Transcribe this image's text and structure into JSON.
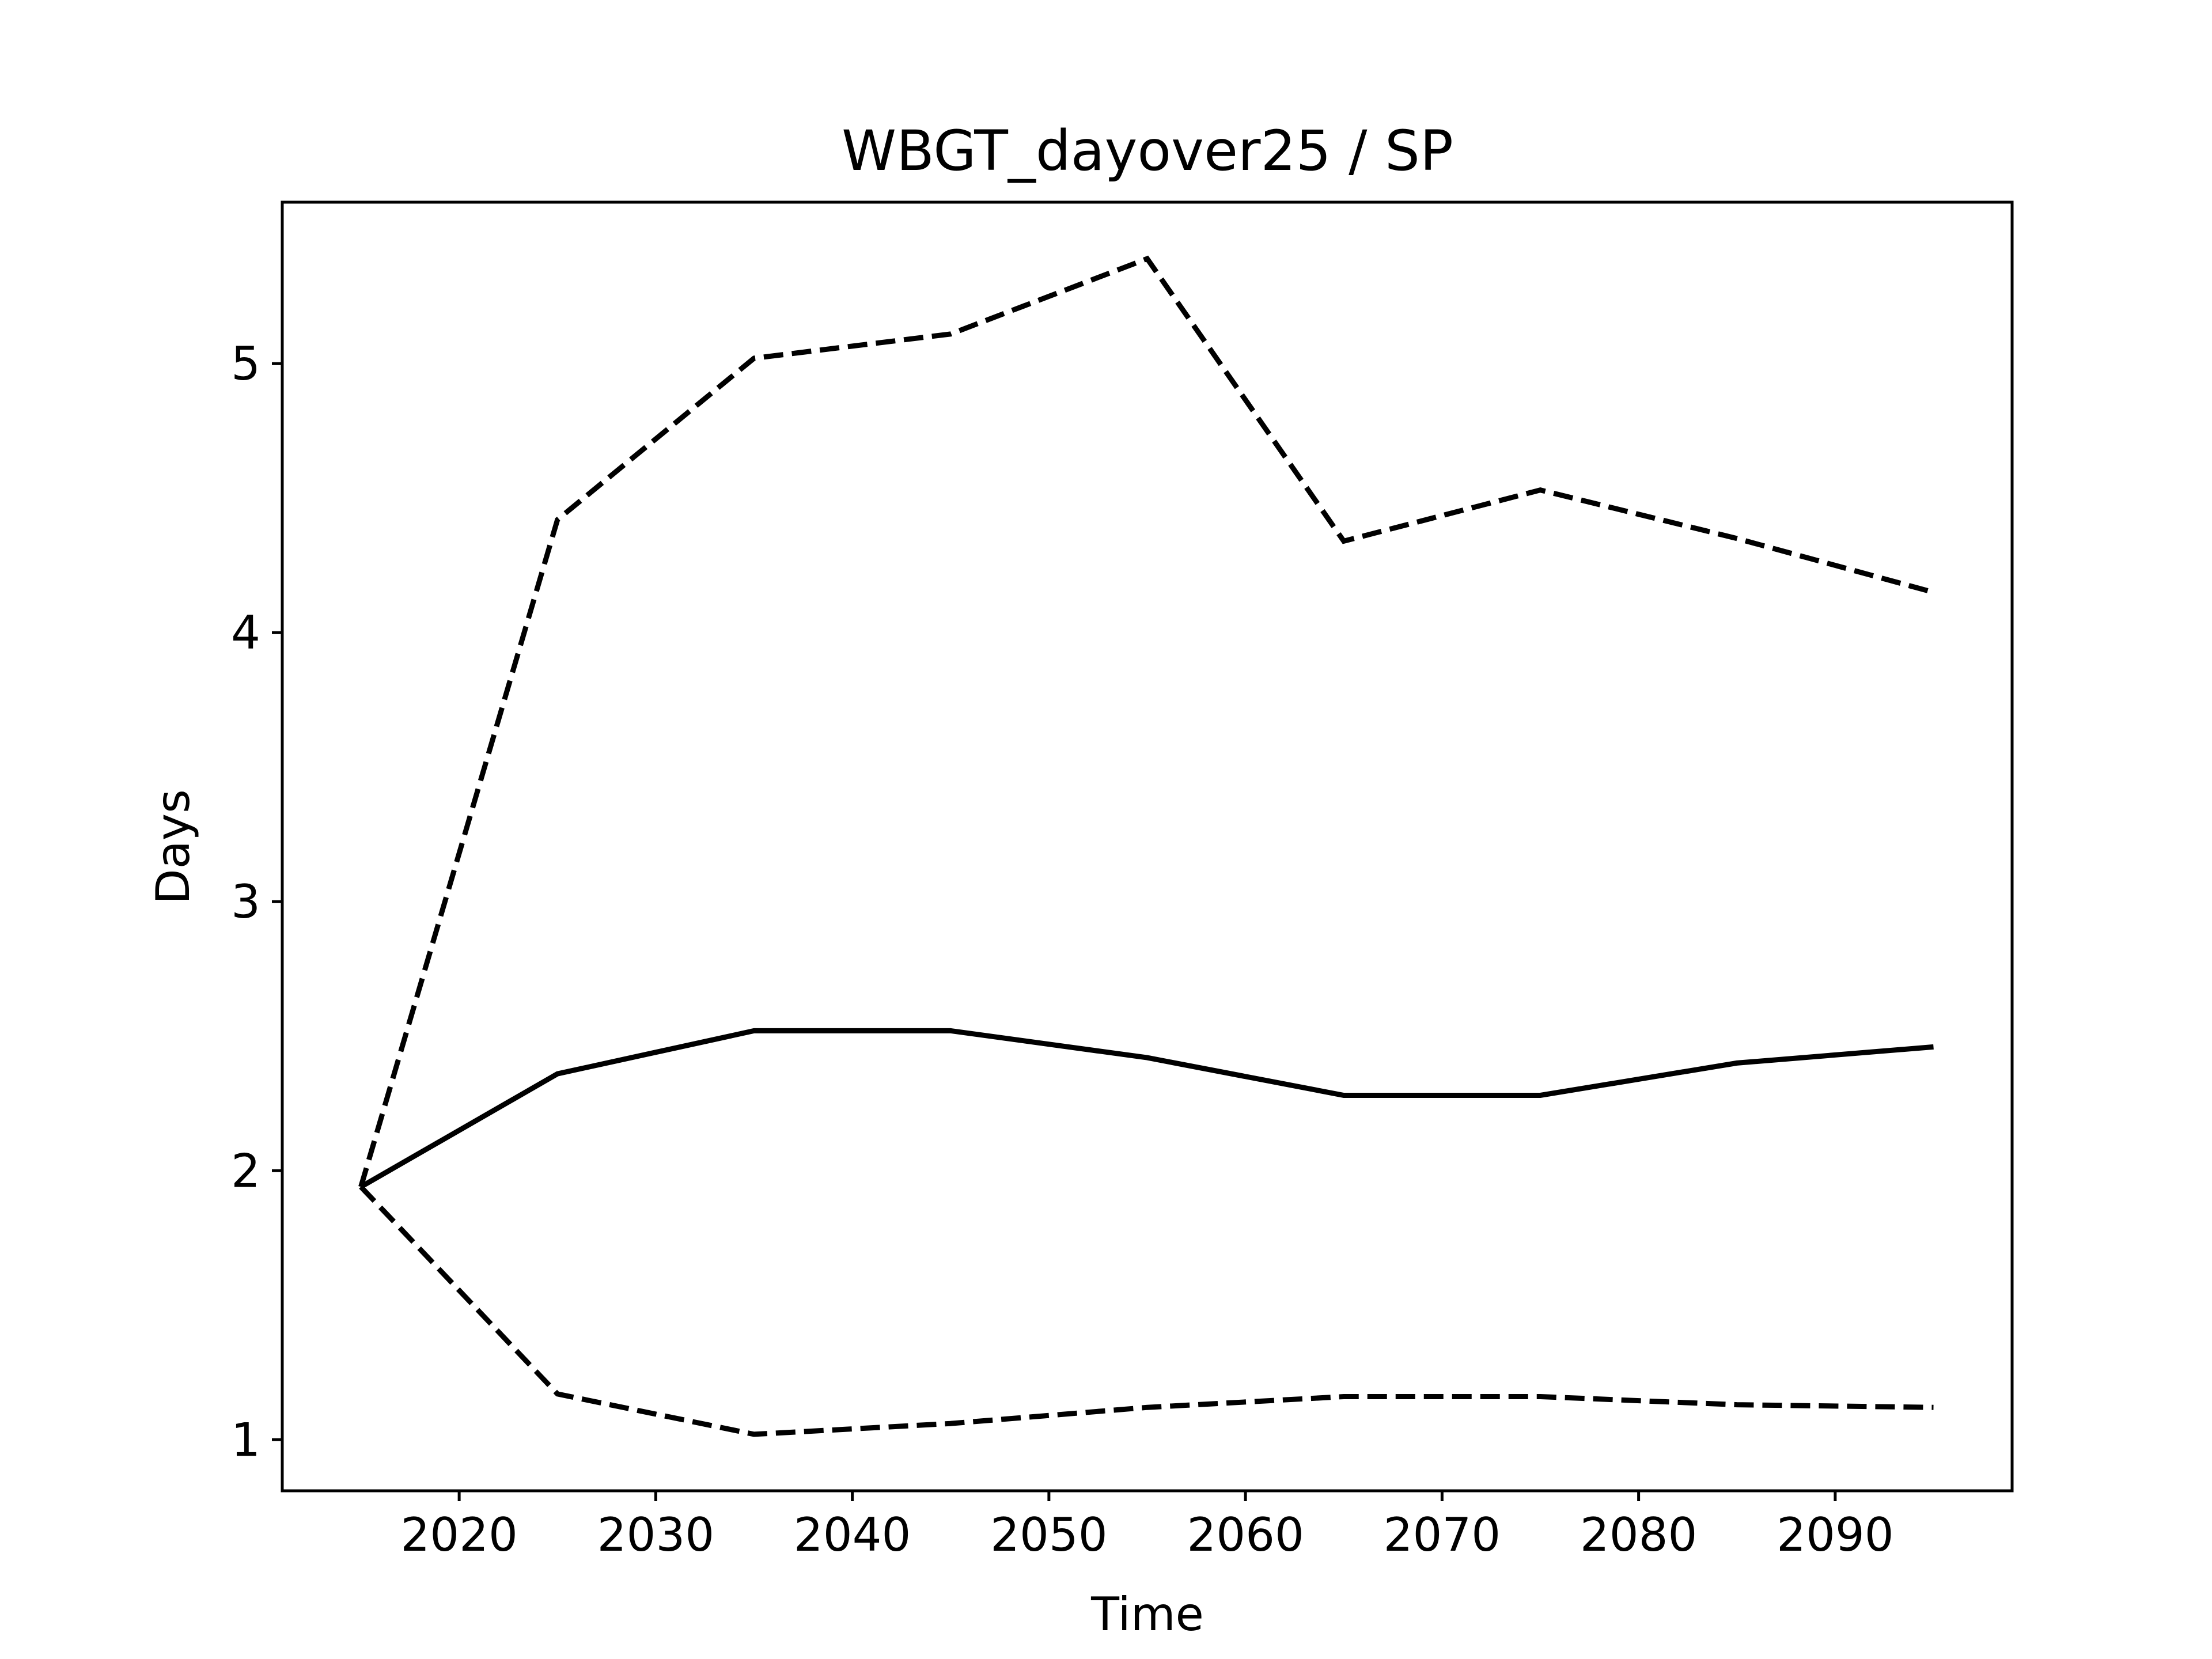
{
  "chart_data": {
    "type": "line",
    "title": "WBGT_dayover25 / SP",
    "xlabel": "Time",
    "ylabel": "Days",
    "xlim": [
      2011,
      2099
    ],
    "ylim": [
      0.81,
      5.6
    ],
    "xticks": [
      2020,
      2030,
      2040,
      2050,
      2060,
      2070,
      2080,
      2090
    ],
    "yticks": [
      1,
      2,
      3,
      4,
      5
    ],
    "grid": false,
    "x": [
      2015,
      2025,
      2035,
      2045,
      2055,
      2065,
      2075,
      2085,
      2095
    ],
    "series": [
      {
        "style": "solid",
        "color": "#000000",
        "values": [
          1.94,
          2.36,
          2.52,
          2.52,
          2.42,
          2.28,
          2.28,
          2.4,
          2.46
        ]
      },
      {
        "style": "dashed",
        "color": "#000000",
        "values": [
          1.94,
          4.42,
          5.02,
          5.11,
          5.39,
          4.34,
          4.53,
          4.35,
          4.15
        ]
      },
      {
        "style": "dashed",
        "color": "#000000",
        "values": [
          1.94,
          1.17,
          1.02,
          1.06,
          1.12,
          1.16,
          1.16,
          1.13,
          1.12
        ]
      }
    ]
  }
}
